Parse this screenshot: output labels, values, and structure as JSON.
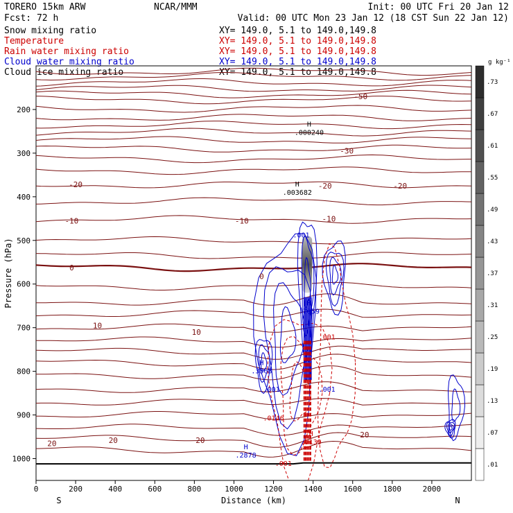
{
  "header": {
    "model": "TORERO  15km ARW",
    "center": "NCAR/MMM",
    "init": "Init: 00 UTC Fri 20 Jan 12",
    "fcst": "Fcst:   72 h",
    "valid": "Valid: 00 UTC Mon 23 Jan 12 (18 CST Sun 22 Jan 12)",
    "fields": [
      {
        "name": "Snow mixing ratio",
        "xy": "XY= 149.0,  5.1 to 149.0,149.8",
        "color": "#000000"
      },
      {
        "name": "Temperature",
        "xy": "XY= 149.0,  5.1 to 149.0,149.8",
        "color": "#cc0000"
      },
      {
        "name": "Rain water mixing ratio",
        "xy": "XY= 149.0,  5.1 to 149.0,149.8",
        "color": "#cc0000"
      },
      {
        "name": "Cloud water mixing ratio",
        "xy": "XY= 149.0,  5.1 to 149.0,149.8",
        "color": "#0000cc"
      },
      {
        "name": "Cloud ice mixing ratio",
        "xy": "XY= 149.0,  5.1 to 149.0,149.8",
        "color": "#000000"
      }
    ]
  },
  "chart_data": {
    "type": "contour",
    "xlabel": "Distance (km)",
    "ylabel": "Pressure (hPa)",
    "xlim": [
      0,
      2200
    ],
    "ylim": [
      1050,
      100
    ],
    "xticks": [
      0,
      200,
      400,
      600,
      800,
      1000,
      1200,
      1400,
      1600,
      1800,
      2000
    ],
    "yticks": [
      200,
      300,
      400,
      500,
      600,
      700,
      800,
      900,
      1000
    ],
    "end_labels": {
      "left": "S",
      "right": "N"
    },
    "colorbar": {
      "unit": "g kg⁻¹",
      "ticks": [
        ".01",
        ".07",
        ".13",
        ".19",
        ".25",
        ".31",
        ".37",
        ".43",
        ".49",
        ".55",
        ".61",
        ".67",
        ".73"
      ]
    },
    "temperature_contours": [
      {
        "label": "-50",
        "x": 1640,
        "p": 170
      },
      {
        "label": "-30",
        "x": 1570,
        "p": 295
      },
      {
        "label": "-20",
        "x": 200,
        "p": 372
      },
      {
        "label": "-20",
        "x": 1460,
        "p": 375
      },
      {
        "label": "-20",
        "x": 1840,
        "p": 375
      },
      {
        "label": "-10",
        "x": 180,
        "p": 455
      },
      {
        "label": "-10",
        "x": 1040,
        "p": 455
      },
      {
        "label": "-10",
        "x": 1480,
        "p": 450
      },
      {
        "label": "0",
        "x": 180,
        "p": 562
      },
      {
        "label": "0",
        "x": 1140,
        "p": 582
      },
      {
        "label": "10",
        "x": 310,
        "p": 695
      },
      {
        "label": "10",
        "x": 810,
        "p": 710
      },
      {
        "label": "20",
        "x": 80,
        "p": 965
      },
      {
        "label": "20",
        "x": 390,
        "p": 958
      },
      {
        "label": "20",
        "x": 830,
        "p": 958
      },
      {
        "label": "20",
        "x": 1660,
        "p": 945
      }
    ],
    "extrema": [
      {
        "symbol": "H",
        "value": ".000240",
        "x": 1380,
        "p": 245,
        "color": "#000000"
      },
      {
        "symbol": "H",
        "value": ".003682",
        "x": 1320,
        "p": 383,
        "color": "#000000"
      },
      {
        "symbol": "H",
        "value": ".3368",
        "x": 1140,
        "p": 792,
        "color": "#0000cc"
      },
      {
        "symbol": "H",
        "value": ".2878",
        "x": 1060,
        "p": 985,
        "color": "#0000cc"
      },
      {
        "symbol": "H",
        "value": ".7059",
        "x": 1380,
        "p": 655,
        "color": "#0000cc"
      },
      {
        "symbol": "H",
        "value": ".7139",
        "x": 1390,
        "p": 955,
        "color": "#cc0000"
      }
    ],
    "other_labels": [
      {
        "value": ".001",
        "x": 1340,
        "p": 487,
        "color": "#0000cc"
      },
      {
        "value": ".001",
        "x": 1470,
        "p": 720,
        "color": "#cc0000"
      },
      {
        "value": ".001",
        "x": 1190,
        "p": 840,
        "color": "#0000cc"
      },
      {
        "value": ".001",
        "x": 1470,
        "p": 840,
        "color": "#0000cc"
      },
      {
        "value": ".0146",
        "x": 1200,
        "p": 906,
        "color": "#cc0000"
      },
      {
        "value": ".001",
        "x": 1250,
        "p": 1010,
        "color": "#cc0000"
      }
    ]
  }
}
